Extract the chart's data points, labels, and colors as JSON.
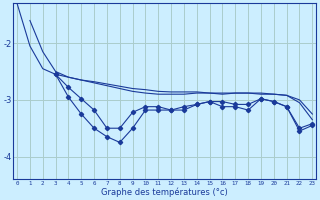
{
  "xlabel": "Graphe des températures (°c)",
  "background_color": "#cceeff",
  "grid_color": "#aacccc",
  "line_color": "#1a3a9a",
  "x_labels": [
    "0",
    "1",
    "2",
    "3",
    "4",
    "5",
    "6",
    "7",
    "8",
    "9",
    "10",
    "11",
    "12",
    "13",
    "14",
    "15",
    "16",
    "17",
    "18",
    "19",
    "20",
    "21",
    "22",
    "23"
  ],
  "ylim": [
    -4.4,
    -1.3
  ],
  "yticks": [
    -4,
    -3,
    -2
  ],
  "xlim": [
    -0.3,
    23.3
  ],
  "series": [
    [
      null,
      -1.6,
      -2.15,
      -2.5,
      -2.6,
      -2.65,
      -2.7,
      -2.75,
      -2.8,
      -2.85,
      -2.88,
      -2.9,
      -2.9,
      -2.9,
      -2.88,
      -2.88,
      -2.9,
      -2.88,
      -2.88,
      -2.9,
      -2.9,
      -2.92,
      -3.05,
      -3.35
    ],
    [
      -1.3,
      -2.05,
      -2.45,
      -2.55,
      -2.6,
      -2.65,
      -2.68,
      -2.72,
      -2.76,
      -2.8,
      -2.82,
      -2.85,
      -2.86,
      -2.86,
      -2.86,
      -2.88,
      -2.88,
      -2.88,
      -2.88,
      -2.88,
      -2.9,
      -2.92,
      -3.0,
      -3.25
    ],
    [
      null,
      null,
      null,
      -2.55,
      -2.95,
      -3.25,
      -3.5,
      -3.65,
      -3.75,
      -3.5,
      -3.18,
      -3.18,
      -3.18,
      -3.12,
      -3.08,
      -3.03,
      -3.12,
      -3.12,
      -3.18,
      -2.98,
      -3.03,
      -3.12,
      -3.55,
      -3.45
    ],
    [
      null,
      null,
      null,
      -2.55,
      -2.78,
      -2.98,
      -3.18,
      -3.5,
      -3.5,
      -3.22,
      -3.12,
      -3.12,
      -3.18,
      -3.18,
      -3.08,
      -3.03,
      -3.03,
      -3.08,
      -3.08,
      -2.98,
      -3.03,
      -3.12,
      -3.5,
      -3.42
    ]
  ],
  "marker": "D",
  "marker_size": 2.2,
  "linewidth": 0.8,
  "xlabel_fontsize": 6.0,
  "xtick_fontsize": 4.2,
  "ytick_fontsize": 6.0
}
